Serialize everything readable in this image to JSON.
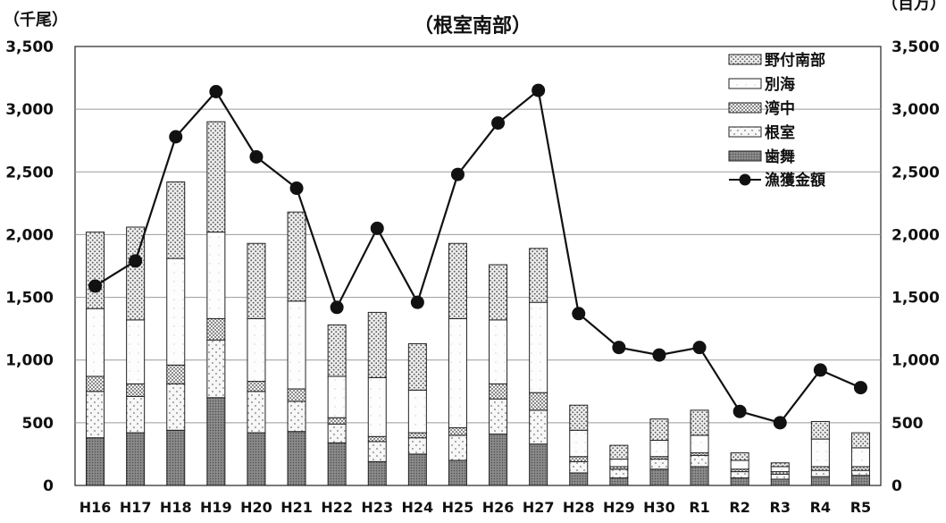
{
  "chart_data": {
    "type": "bar",
    "subtitle": "（根室南部）",
    "left_axis_unit": "（千尾）",
    "right_axis_unit": "（百万）",
    "categories": [
      "H16",
      "H17",
      "H18",
      "H19",
      "H20",
      "H21",
      "H22",
      "H23",
      "H24",
      "H25",
      "H26",
      "H27",
      "H28",
      "H29",
      "H30",
      "R1",
      "R2",
      "R3",
      "R4",
      "R5"
    ],
    "ylim": [
      0,
      3500
    ],
    "y2lim": [
      0,
      3500
    ],
    "yticks": [
      0,
      500,
      1000,
      1500,
      2000,
      2500,
      3000,
      3500
    ],
    "ytick_labels": [
      "0",
      "500",
      "1,000",
      "1,500",
      "2,000",
      "2,500",
      "3,000",
      "3,500"
    ],
    "legend_position": "top-right",
    "grid": true,
    "series": [
      {
        "name": "歯舞",
        "kind": "bar",
        "color": "#7a7a7a",
        "values": [
          380,
          420,
          440,
          700,
          420,
          430,
          340,
          190,
          250,
          200,
          410,
          330,
          100,
          60,
          130,
          150,
          60,
          50,
          70,
          80
        ]
      },
      {
        "name": "根室",
        "kind": "bar",
        "color": "#e9e9e9",
        "values": [
          370,
          290,
          370,
          460,
          330,
          240,
          150,
          160,
          130,
          200,
          280,
          270,
          90,
          70,
          80,
          90,
          50,
          40,
          50,
          40
        ]
      },
      {
        "name": "湾中",
        "kind": "bar",
        "color": "#d9d9d9",
        "values": [
          120,
          100,
          150,
          170,
          80,
          100,
          50,
          40,
          40,
          60,
          120,
          140,
          40,
          20,
          20,
          20,
          20,
          20,
          30,
          30
        ]
      },
      {
        "name": "別海",
        "kind": "bar",
        "color": "#fbfbfb",
        "values": [
          540,
          510,
          850,
          690,
          500,
          700,
          330,
          470,
          340,
          870,
          510,
          720,
          210,
          60,
          130,
          140,
          70,
          40,
          220,
          150
        ]
      },
      {
        "name": "野付南部",
        "kind": "bar",
        "color": "#c8c8c8",
        "values": [
          610,
          740,
          610,
          880,
          600,
          710,
          410,
          520,
          370,
          600,
          440,
          430,
          200,
          110,
          170,
          200,
          60,
          30,
          140,
          120
        ]
      },
      {
        "name": "漁獲金額",
        "kind": "line",
        "axis": "right",
        "color": "#111111",
        "values": [
          1590,
          1790,
          2780,
          3140,
          2620,
          2370,
          1420,
          2050,
          1460,
          2480,
          2890,
          3150,
          1370,
          1100,
          1040,
          1100,
          590,
          500,
          920,
          780
        ]
      }
    ]
  }
}
